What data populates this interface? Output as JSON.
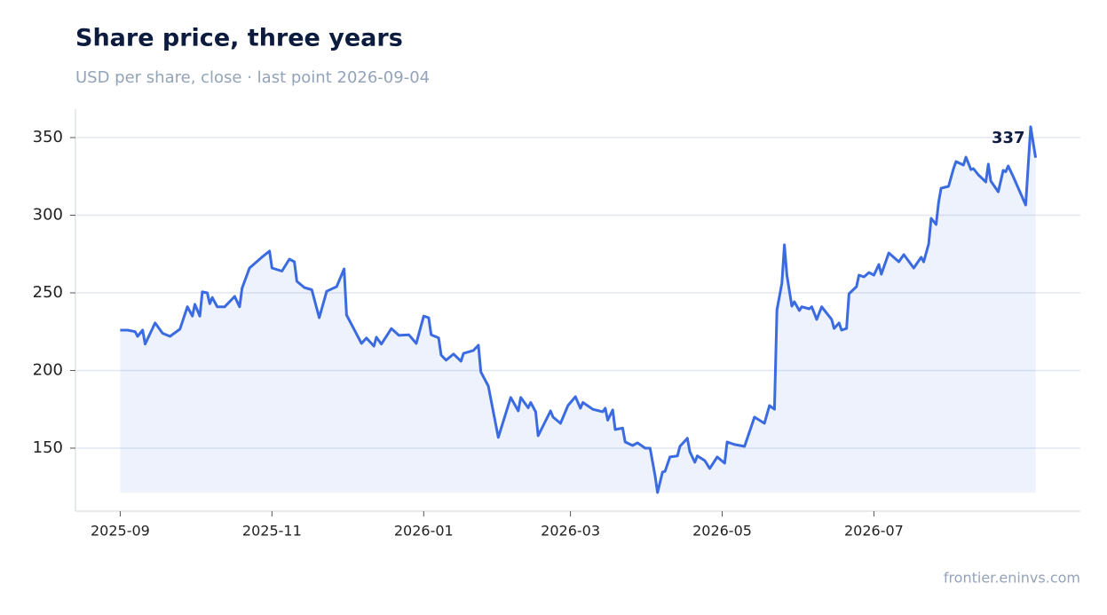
{
  "chart_data": {
    "type": "line",
    "title": "Share price, three years",
    "subtitle": "USD per share, close · last point 2026-09-04",
    "source": "frontier.eninvs.com",
    "annotation": "337",
    "x": [
      "2025-09-01",
      "2025-09-04",
      "2025-09-07",
      "2025-09-08",
      "2025-09-10",
      "2025-09-11",
      "2025-09-15",
      "2025-09-18",
      "2025-09-21",
      "2025-09-25",
      "2025-09-28",
      "2025-09-30",
      "2025-10-01",
      "2025-10-03",
      "2025-10-04",
      "2025-10-06",
      "2025-10-07",
      "2025-10-08",
      "2025-10-10",
      "2025-10-13",
      "2025-10-17",
      "2025-10-19",
      "2025-10-20",
      "2025-10-23",
      "2025-10-28",
      "2025-10-31",
      "2025-11-01",
      "2025-11-05",
      "2025-11-08",
      "2025-11-10",
      "2025-11-11",
      "2025-11-14",
      "2025-11-17",
      "2025-11-20",
      "2025-11-23",
      "2025-11-27",
      "2025-11-30",
      "2025-12-01",
      "2025-12-04",
      "2025-12-07",
      "2025-12-09",
      "2025-12-12",
      "2025-12-13",
      "2025-12-15",
      "2025-12-19",
      "2025-12-22",
      "2025-12-26",
      "2025-12-29",
      "2026-01-01",
      "2026-01-03",
      "2026-01-04",
      "2026-01-07",
      "2026-01-08",
      "2026-01-10",
      "2026-01-13",
      "2026-01-16",
      "2026-01-17",
      "2026-01-21",
      "2026-01-23",
      "2026-01-24",
      "2026-01-27",
      "2026-01-29",
      "2026-01-31",
      "2026-02-05",
      "2026-02-08",
      "2026-02-09",
      "2026-02-12",
      "2026-02-13",
      "2026-02-15",
      "2026-02-16",
      "2026-02-21",
      "2026-02-22",
      "2026-02-25",
      "2026-02-28",
      "2026-03-03",
      "2026-03-05",
      "2026-03-06",
      "2026-03-10",
      "2026-03-14",
      "2026-03-15",
      "2026-03-16",
      "2026-03-18",
      "2026-03-19",
      "2026-03-22",
      "2026-03-23",
      "2026-03-26",
      "2026-03-28",
      "2026-03-31",
      "2026-04-02",
      "2026-04-04",
      "2026-04-05",
      "2026-04-07",
      "2026-04-08",
      "2026-04-10",
      "2026-04-13",
      "2026-04-14",
      "2026-04-17",
      "2026-04-18",
      "2026-04-20",
      "2026-04-21",
      "2026-04-24",
      "2026-04-26",
      "2026-04-29",
      "2026-05-02",
      "2026-05-03",
      "2026-05-06",
      "2026-05-10",
      "2026-05-14",
      "2026-05-18",
      "2026-05-20",
      "2026-05-22",
      "2026-05-23",
      "2026-05-25",
      "2026-05-26",
      "2026-05-27",
      "2026-05-29",
      "2026-05-30",
      "2026-06-01",
      "2026-06-02",
      "2026-06-05",
      "2026-06-06",
      "2026-06-08",
      "2026-06-10",
      "2026-06-14",
      "2026-06-15",
      "2026-06-17",
      "2026-06-18",
      "2026-06-20",
      "2026-06-21",
      "2026-06-24",
      "2026-06-25",
      "2026-06-27",
      "2026-06-29",
      "2026-07-01",
      "2026-07-03",
      "2026-07-04",
      "2026-07-07",
      "2026-07-11",
      "2026-07-13",
      "2026-07-17",
      "2026-07-20",
      "2026-07-21",
      "2026-07-23",
      "2026-07-24",
      "2026-07-26",
      "2026-07-27",
      "2026-07-28",
      "2026-07-31",
      "2026-08-02",
      "2026-08-03",
      "2026-08-06",
      "2026-08-07",
      "2026-08-09",
      "2026-08-10",
      "2026-08-12",
      "2026-08-15",
      "2026-08-16",
      "2026-08-17",
      "2026-08-20",
      "2026-08-22",
      "2026-08-23",
      "2026-08-24",
      "2026-08-26",
      "2026-08-31",
      "2026-09-02",
      "2026-09-04"
    ],
    "series": [
      {
        "color": "#3b6be0",
        "values": [
          226,
          226,
          225,
          222,
          226,
          217,
          230.6,
          224,
          222,
          226.6,
          241,
          235,
          242.6,
          235,
          250.6,
          250,
          243,
          247,
          241,
          241,
          247.7,
          241,
          253,
          266,
          273,
          276.9,
          266,
          264,
          271.7,
          270,
          257.4,
          253.4,
          252,
          234,
          251,
          254,
          265.4,
          235.7,
          226.6,
          217.4,
          220.9,
          215.7,
          221.4,
          217,
          227,
          222.6,
          223,
          217.4,
          235,
          234,
          223,
          221,
          210,
          206.6,
          210.6,
          206,
          211,
          212.9,
          216.3,
          199,
          190,
          173.4,
          156.9,
          182.6,
          174,
          182.6,
          176,
          179.4,
          173.4,
          158,
          174,
          170,
          166,
          177.4,
          183.1,
          175.7,
          179.4,
          175,
          173.4,
          175.7,
          168,
          174.6,
          162,
          162.9,
          154,
          151.7,
          153.4,
          150,
          150,
          132.3,
          121.4,
          134.6,
          135,
          144.3,
          145,
          151.1,
          156.3,
          147.7,
          140.9,
          145,
          142,
          136.9,
          144.3,
          140.3,
          154,
          152.3,
          151.1,
          170,
          166,
          177.4,
          175,
          239,
          256.3,
          280.9,
          261.4,
          241.4,
          244.3,
          238.6,
          241,
          239.7,
          241,
          232.9,
          241,
          232.9,
          227.1,
          230.6,
          226,
          227.1,
          249.4,
          254,
          261.4,
          260.3,
          263.1,
          261.4,
          268.3,
          262,
          275.7,
          270,
          274.6,
          266,
          272.9,
          270,
          281.4,
          298,
          294,
          308.3,
          317.4,
          318.6,
          330,
          334.6,
          332.3,
          337.4,
          329.4,
          330,
          326,
          321.4,
          332.9,
          322,
          315.1,
          328.9,
          328,
          331.7,
          324.9,
          306.6,
          356.9,
          337
        ]
      }
    ],
    "xlim": [
      "2025-08-14",
      "2026-09-22"
    ],
    "xticks": [
      {
        "value": "2025-09-01",
        "label": "2025-09"
      },
      {
        "value": "2025-11-01",
        "label": "2025-11"
      },
      {
        "value": "2026-01-01",
        "label": "2026-01"
      },
      {
        "value": "2026-03-01",
        "label": "2026-03"
      },
      {
        "value": "2026-05-01",
        "label": "2026-05"
      },
      {
        "value": "2026-07-01",
        "label": "2026-07"
      }
    ],
    "ylim": [
      109.4,
      368.3
    ],
    "yticks": [
      150,
      200,
      250,
      300,
      350
    ],
    "grid": true
  }
}
